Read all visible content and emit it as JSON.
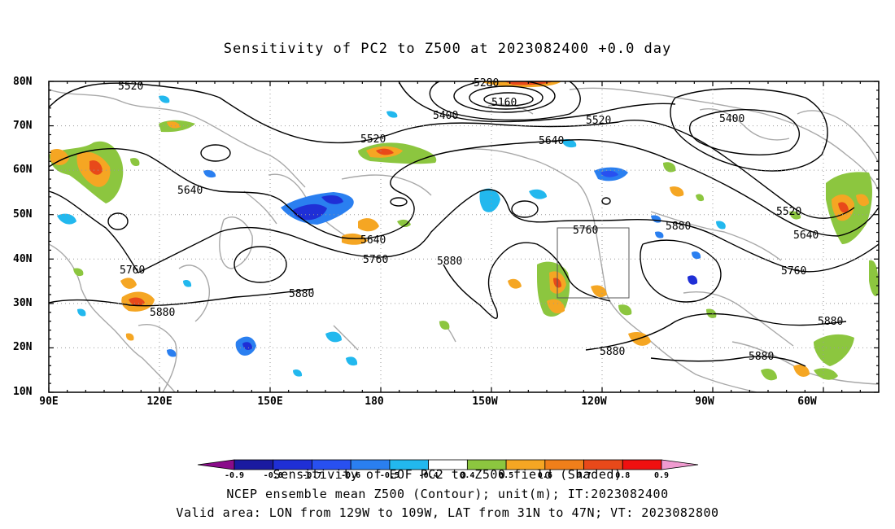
{
  "title": "Sensitivity of PC2 to Z500 at 2023082400 +0.0 day",
  "y_ticks": [
    "80N",
    "70N",
    "60N",
    "50N",
    "40N",
    "30N",
    "20N",
    "10N"
  ],
  "x_ticks": [
    "90E",
    "120E",
    "150E",
    "180",
    "150W",
    "120W",
    "90W",
    "60W"
  ],
  "contour_labels": [
    "5520",
    "5280",
    "5160",
    "5400",
    "5520",
    "5400",
    "5520",
    "5640",
    "5640",
    "5640",
    "5760",
    "5880",
    "5760",
    "5880",
    "5760",
    "5880",
    "5880",
    "5880",
    "5520",
    "5640",
    "5760",
    "5880",
    "5880",
    "5880"
  ],
  "colorbar": {
    "title": "Sensitivity of EOF PC2 to Z500 field (Shaded)",
    "tick_labels": [
      "-0.9",
      "-0.8",
      "-0.7",
      "-0.6",
      "-0.5",
      "-0.4",
      "0.4",
      "0.5",
      "0.6",
      "0.7",
      "0.8",
      "0.9"
    ],
    "colors": [
      "#8a0c8a",
      "#1a1aa0",
      "#1f2fd6",
      "#2850f0",
      "#2a7ff0",
      "#22b8ee",
      "#ffffff",
      "#8cc63f",
      "#f5a623",
      "#f07f1a",
      "#e8491a",
      "#f01010",
      "#f09bd0"
    ]
  },
  "footer_lines": [
    "NCEP ensemble mean Z500 (Contour); unit(m); IT:2023082400",
    "Valid area: LON from 129W to 109W, LAT from 31N to 47N; VT: 2023082800"
  ],
  "valid_area": {
    "lon_west": "129W",
    "lon_east": "109W",
    "lat_south": "31N",
    "lat_north": "47N"
  },
  "shading": {
    "positive_color": "#8cc63f",
    "mid_color": "#f5a623",
    "high_color": "#e8491a",
    "negative_color": "#2a7ff0",
    "strong_negative_color": "#1f2fd6"
  }
}
